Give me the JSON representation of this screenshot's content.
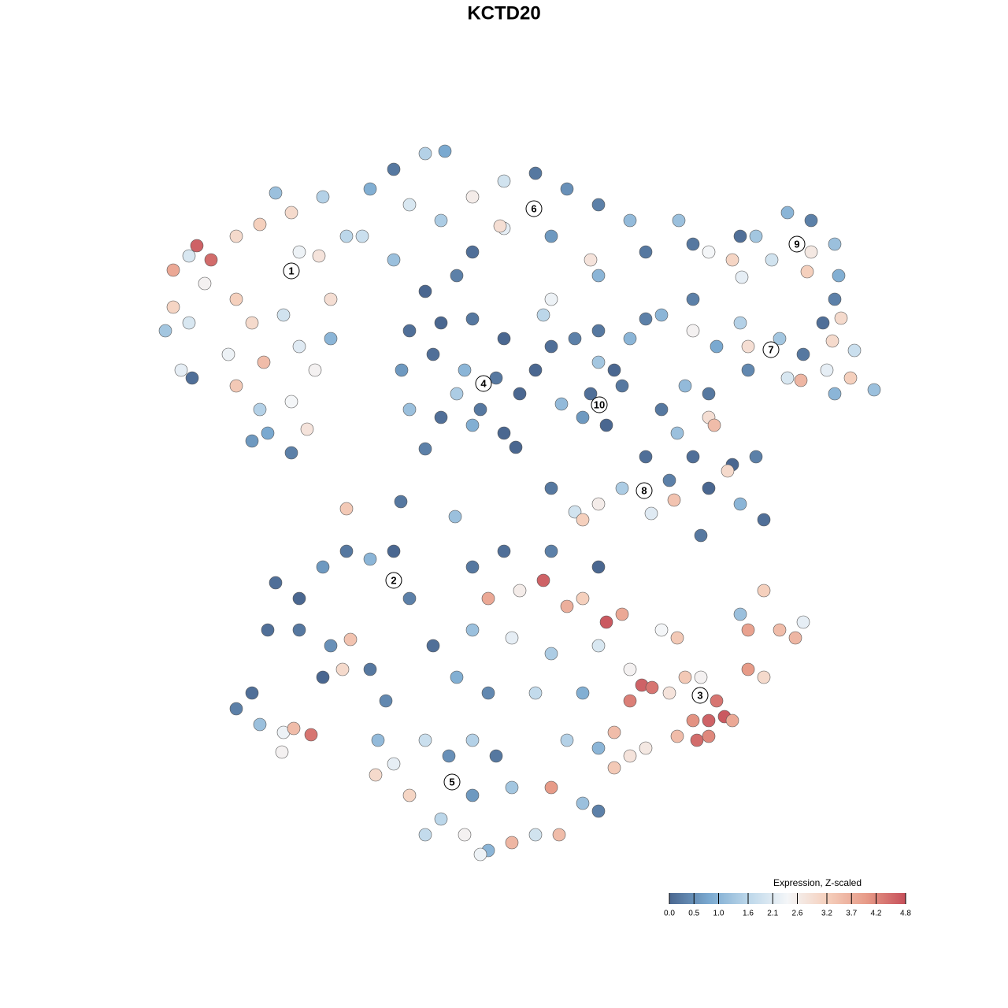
{
  "chart_data": {
    "type": "scatter",
    "title": "KCTD20",
    "colorbar_title": "Expression, Z-scaled",
    "clim": [
      0,
      4.8
    ],
    "cticks": [
      {
        "value": 0,
        "label": "0.0"
      },
      0.5,
      {
        "value": 1,
        "label": "1.0"
      },
      1.6,
      2.1,
      2.6,
      3.2,
      3.7,
      4.2,
      4.8
    ],
    "colormap": [
      "#4a6790",
      "#7aa9d0",
      "#bcd7ea",
      "#f4f6f8",
      "#f5d0bd",
      "#e79b88",
      "#c64f5a"
    ],
    "xlim": [
      180,
      1150
    ],
    "ylim": [
      1110,
      170
    ],
    "series": [
      {
        "x": [
          250,
          268,
          220,
          240,
          300,
          330,
          370,
          410,
          350,
          405,
          300,
          260,
          220,
          210,
          240,
          320,
          360,
          290,
          300,
          335,
          380,
          400,
          420,
          330,
          370,
          340,
          370,
          320,
          390,
          230,
          244,
          420,
          440,
          380
        ],
        "y": [
          312,
          330,
          343,
          325,
          300,
          285,
          270,
          250,
          245,
          325,
          380,
          360,
          390,
          420,
          410,
          410,
          400,
          450,
          490,
          460,
          440,
          470,
          430,
          520,
          510,
          550,
          575,
          560,
          545,
          470,
          480,
          380,
          300,
          320
        ],
        "values": [
          4.6,
          4.5,
          3.8,
          2.0,
          3.0,
          3.2,
          3.0,
          1.5,
          1.2,
          2.8,
          3.2,
          2.5,
          3.1,
          1.3,
          2.0,
          3.0,
          1.9,
          2.3,
          3.3,
          3.5,
          2.1,
          2.5,
          1.0,
          1.5,
          2.4,
          0.8,
          0.3,
          0.6,
          2.8,
          2.2,
          0.1,
          2.9,
          1.6,
          2.3
        ]
      },
      {
        "x": [
          470,
          500,
          540,
          565,
          520,
          560,
          600,
          640,
          680,
          720,
          760,
          800,
          820,
          640,
          700,
          750,
          600,
          500,
          460,
          700,
          690,
          580,
          540,
          635,
          760
        ],
        "y": [
          240,
          215,
          195,
          192,
          260,
          280,
          250,
          230,
          220,
          240,
          260,
          280,
          320,
          290,
          300,
          330,
          320,
          330,
          300,
          380,
          400,
          350,
          370,
          287,
          350
        ],
        "values": [
          0.9,
          0.2,
          1.5,
          0.8,
          2.0,
          1.4,
          2.6,
          1.9,
          0.2,
          0.5,
          0.3,
          1.1,
          0.2,
          2.2,
          0.6,
          2.8,
          0.1,
          1.2,
          1.8,
          2.3,
          1.6,
          0.3,
          0.0,
          2.9,
          1.0
        ]
      },
      {
        "x": [
          520,
          560,
          600,
          640,
          510,
          550,
          590,
          630,
          660,
          520,
          560,
          600,
          640,
          540,
          580,
          610,
          700,
          730,
          680,
          655
        ],
        "y": [
          420,
          410,
          405,
          430,
          470,
          450,
          470,
          480,
          500,
          520,
          530,
          540,
          550,
          570,
          500,
          520,
          440,
          430,
          470,
          568
        ],
        "values": [
          0.1,
          0.0,
          0.2,
          0.0,
          0.6,
          0.1,
          1.0,
          0.2,
          0.0,
          1.2,
          0.1,
          0.9,
          0.0,
          0.3,
          1.4,
          0.2,
          0.1,
          0.3,
          0.0,
          0.0
        ]
      },
      {
        "x": [
          760,
          800,
          780,
          750,
          790,
          770,
          740,
          820,
          713,
          760
        ],
        "y": [
          420,
          430,
          470,
          500,
          490,
          540,
          530,
          405,
          513,
          460
        ],
        "values": [
          0.2,
          1.0,
          0.0,
          0.1,
          0.2,
          0.0,
          0.6,
          0.3,
          1.1,
          1.3
        ]
      },
      {
        "x": [
          1000,
          1030,
          1060,
          1065,
          1060,
          960,
          930,
          900,
          880,
          940,
          980,
          1030,
          1025,
          942,
          862,
          1068,
          1045
        ],
        "y": [
          270,
          280,
          310,
          350,
          380,
          300,
          330,
          320,
          310,
          300,
          330,
          320,
          345,
          352,
          280,
          404,
          410
        ],
        "values": [
          1.0,
          0.3,
          1.2,
          0.9,
          0.3,
          1.3,
          3.1,
          2.4,
          0.2,
          0.1,
          1.9,
          2.7,
          3.2,
          2.2,
          1.2,
          3.0,
          0.1
        ]
      },
      {
        "x": [
          840,
          880,
          910,
          950,
          990,
          1020,
          1050,
          1080,
          1110,
          1000,
          1017,
          1060,
          880,
          940,
          1085,
          1057,
          950,
          900,
          870
        ],
        "y": [
          400,
          420,
          440,
          440,
          430,
          450,
          470,
          480,
          495,
          480,
          483,
          500,
          380,
          410,
          445,
          433,
          470,
          500,
          490
        ],
        "values": [
          1.0,
          2.5,
          0.8,
          2.9,
          1.3,
          0.2,
          2.2,
          3.2,
          1.2,
          2.0,
          3.6,
          1.0,
          0.3,
          1.5,
          1.8,
          3.0,
          0.4,
          0.2,
          1.1
        ]
      },
      {
        "x": [
          840,
          860,
          900,
          907,
          880,
          930,
          960,
          900,
          940,
          970,
          890,
          850,
          820,
          790,
          760,
          730,
          700,
          740,
          924,
          856,
          827
        ],
        "y": [
          520,
          550,
          530,
          540,
          580,
          590,
          580,
          620,
          640,
          660,
          680,
          610,
          580,
          620,
          640,
          650,
          620,
          660,
          598,
          635,
          652
        ],
        "values": [
          0.2,
          1.2,
          2.9,
          3.5,
          0.1,
          0.0,
          0.3,
          0.0,
          1.0,
          0.1,
          0.2,
          0.3,
          0.1,
          1.4,
          2.6,
          1.9,
          0.2,
          3.2,
          3.0,
          3.4,
          2.1
        ]
      },
      {
        "x": [
          350,
          380,
          410,
          440,
          470,
          500,
          520,
          340,
          380,
          420,
          410,
          445,
          435,
          470,
          300,
          330,
          360,
          395,
          373,
          358,
          320,
          440,
          509,
          578
        ],
        "y": [
          740,
          760,
          720,
          700,
          710,
          700,
          760,
          800,
          800,
          820,
          860,
          812,
          850,
          850,
          900,
          920,
          930,
          933,
          925,
          955,
          880,
          646,
          637,
          656
        ],
        "values": [
          0.1,
          0.0,
          0.6,
          0.2,
          1.0,
          0.0,
          0.3,
          0.1,
          0.2,
          0.5,
          0.0,
          3.4,
          3.0,
          0.2,
          0.3,
          1.2,
          2.3,
          4.4,
          3.5,
          2.5,
          0.1,
          3.3,
          0.2,
          1.2
        ]
      },
      {
        "x": [
          490,
          480,
          500,
          520,
          540,
          570,
          600,
          630,
          560,
          590,
          620,
          650,
          680,
          710,
          700,
          740,
          760,
          650,
          600,
          540,
          477,
          610,
          720
        ],
        "y": [
          890,
          940,
          970,
          1010,
          940,
          960,
          940,
          960,
          1040,
          1060,
          1080,
          1070,
          1060,
          1060,
          1000,
          1020,
          1030,
          1000,
          1010,
          1060,
          984,
          1085,
          940
        ],
        "values": [
          0.4,
          1.1,
          2.2,
          3.1,
          1.8,
          0.5,
          1.5,
          0.2,
          1.6,
          2.5,
          1.0,
          3.6,
          1.9,
          3.5,
          4.0,
          1.2,
          0.3,
          1.3,
          0.6,
          1.7,
          3.0,
          2.3,
          1.5
        ]
      },
      {
        "x": [
          620,
          690,
          660,
          720,
          740,
          770,
          790,
          600,
          650,
          700,
          760,
          800,
          815,
          828,
          800,
          850,
          870,
          890,
          910,
          900,
          920,
          930,
          880,
          860,
          885,
          900,
          950,
          970,
          950,
          990,
          1010,
          1020,
          970,
          940,
          840,
          860,
          780,
          800,
          780,
          760,
          820,
          600,
          640,
          700,
          760,
          580,
          550,
          620,
          680,
          740
        ],
        "y": [
          760,
          737,
          750,
          770,
          760,
          790,
          780,
          800,
          810,
          830,
          820,
          850,
          870,
          873,
          890,
          880,
          860,
          860,
          890,
          915,
          910,
          915,
          915,
          935,
          940,
          935,
          850,
          860,
          800,
          800,
          810,
          790,
          750,
          780,
          800,
          810,
          930,
          960,
          975,
          950,
          950,
          720,
          700,
          700,
          720,
          860,
          820,
          880,
          880,
          880
        ],
        "values": [
          3.8,
          4.6,
          2.6,
          3.7,
          3.2,
          4.7,
          3.8,
          1.2,
          2.2,
          1.4,
          2.0,
          2.5,
          4.6,
          4.4,
          4.3,
          2.8,
          3.3,
          2.5,
          4.4,
          4.6,
          4.7,
          3.8,
          4.1,
          3.5,
          4.5,
          4.2,
          4.0,
          3.0,
          3.9,
          3.5,
          3.6,
          2.2,
          3.2,
          1.2,
          2.4,
          3.3,
          3.5,
          2.8,
          3.3,
          1.0,
          2.7,
          0.2,
          0.1,
          0.3,
          0.0,
          0.9,
          0.1,
          0.4,
          1.7,
          0.9
        ]
      }
    ],
    "labels": [
      {
        "text": "1",
        "x": 370,
        "y": 344
      },
      {
        "text": "2",
        "x": 500,
        "y": 737
      },
      {
        "text": "3",
        "x": 889,
        "y": 883
      },
      {
        "text": "4",
        "x": 614,
        "y": 487
      },
      {
        "text": "5",
        "x": 574,
        "y": 993
      },
      {
        "text": "6",
        "x": 678,
        "y": 265
      },
      {
        "text": "7",
        "x": 979,
        "y": 444
      },
      {
        "text": "8",
        "x": 818,
        "y": 623
      },
      {
        "text": "9",
        "x": 1012,
        "y": 310
      },
      {
        "text": "10",
        "x": 761,
        "y": 514
      }
    ]
  }
}
